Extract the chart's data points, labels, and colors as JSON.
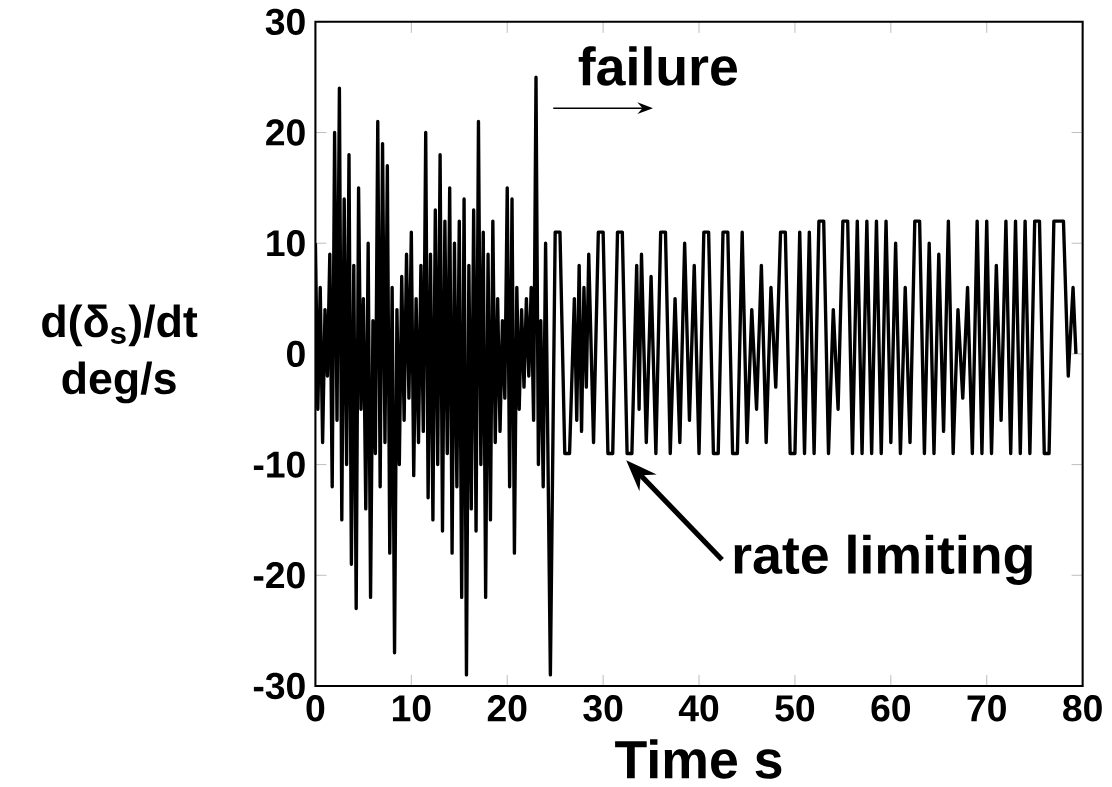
{
  "chart_data": {
    "type": "line",
    "xlabel": "Time s",
    "ylabel": "d(δ$_{s}$)/dt deg/s",
    "xlim": [
      0,
      80
    ],
    "ylim": [
      -30,
      30
    ],
    "xticks": [
      0,
      10,
      20,
      30,
      40,
      50,
      60,
      70,
      80
    ],
    "yticks": [
      -30,
      -20,
      -10,
      0,
      10,
      20,
      30
    ],
    "grid": false,
    "marker": "none",
    "line_style": "solid",
    "color": "#000000",
    "annotations": [
      "failure",
      "rate limiting"
    ],
    "x": [
      0,
      0.25,
      0.5,
      0.75,
      1,
      1.25,
      1.5,
      1.75,
      2,
      2.25,
      2.5,
      2.75,
      3,
      3.25,
      3.5,
      3.75,
      4,
      4.25,
      4.5,
      4.75,
      5,
      5.25,
      5.5,
      5.75,
      6,
      6.25,
      6.5,
      6.75,
      7,
      7.25,
      7.5,
      7.75,
      8,
      8.25,
      8.5,
      8.75,
      9,
      9.25,
      9.5,
      9.75,
      10,
      10.25,
      10.5,
      10.75,
      11,
      11.25,
      11.5,
      11.75,
      12,
      12.25,
      12.5,
      12.75,
      13,
      13.25,
      13.5,
      13.75,
      14,
      14.25,
      14.5,
      14.75,
      15,
      15.25,
      15.5,
      15.75,
      16,
      16.25,
      16.5,
      16.75,
      17,
      17.25,
      17.5,
      17.75,
      18,
      18.25,
      18.5,
      18.75,
      19,
      19.25,
      19.5,
      19.75,
      20,
      20.25,
      20.5,
      20.75,
      21,
      21.25,
      21.5,
      21.75,
      22,
      22.25,
      22.5,
      22.75,
      23,
      23.25,
      23.5,
      23.75,
      24,
      24.5,
      25,
      25.5,
      26,
      26.5,
      27,
      27.25,
      27.5,
      27.75,
      28,
      28.25,
      28.5,
      29,
      29.5,
      30,
      30.5,
      31,
      31.5,
      32,
      32.5,
      33,
      33.5,
      33.75,
      34,
      34.5,
      35,
      35.5,
      36,
      36.5,
      37,
      37.5,
      38,
      38.5,
      39,
      39.5,
      40,
      40.5,
      41,
      41.5,
      42,
      42.5,
      43,
      43.5,
      44,
      44.5,
      45,
      45.5,
      46,
      46.5,
      47,
      47.5,
      48,
      48.5,
      49,
      49.5,
      50,
      50.5,
      51,
      51.5,
      52,
      52.5,
      53,
      53.5,
      54,
      54.5,
      55,
      55.5,
      56,
      56.5,
      57,
      57.5,
      58,
      58.5,
      59,
      59.5,
      60,
      60.5,
      61,
      61.5,
      62,
      62.5,
      63,
      63.5,
      64,
      64.5,
      65,
      65.5,
      66,
      66.5,
      67,
      67.5,
      68,
      68.5,
      69,
      69.5,
      70,
      70.5,
      71,
      71.5,
      72,
      72.5,
      73,
      73.5,
      74,
      74.5,
      75,
      75.5,
      76,
      76.5,
      77,
      78,
      78.5,
      79,
      79.3
    ],
    "values": [
      10,
      -5,
      6,
      -8,
      4,
      -2,
      9,
      -12,
      20,
      -6,
      24,
      -15,
      14,
      -10,
      18,
      -19,
      8,
      -23,
      15,
      -5,
      5,
      -14,
      10,
      -22,
      3,
      -9,
      21,
      -12,
      19,
      -8,
      17,
      -18,
      6,
      -27,
      4,
      -10,
      7,
      -6,
      9,
      -4,
      11,
      -11,
      5,
      -8,
      8,
      -7,
      20,
      -13,
      9,
      -15,
      13,
      -10,
      18,
      -16,
      12,
      -9,
      15,
      -18,
      10,
      -12,
      12,
      -22,
      14,
      -29,
      8,
      -14,
      13,
      -16,
      21,
      -10,
      11,
      -22,
      9,
      -15,
      12,
      -8,
      5,
      -7,
      3,
      -4,
      15,
      -12,
      14,
      -18,
      6,
      -5,
      4,
      -3,
      5,
      -2,
      6,
      -6,
      25,
      -10,
      3,
      -12,
      10,
      -29,
      11,
      11,
      -9,
      -9,
      5,
      -6,
      8,
      -7,
      6,
      -3,
      9,
      -8,
      11,
      11,
      -9,
      -9,
      11,
      11,
      -9,
      -9,
      8,
      -5,
      9,
      -8,
      7,
      -9,
      11,
      11,
      -9,
      5,
      -8,
      10,
      -6,
      8,
      -9,
      11,
      11,
      -9,
      -9,
      11,
      11,
      -9,
      -9,
      11,
      -8,
      4,
      -5,
      8,
      -8,
      6,
      -3,
      11,
      11,
      -9,
      -9,
      11,
      -9,
      11,
      -9,
      12,
      12,
      -9,
      4,
      -5,
      12,
      12,
      -9,
      12,
      -9,
      12,
      -9,
      12,
      -9,
      12,
      -8,
      10,
      -9,
      6,
      -8,
      12,
      12,
      -9,
      10,
      -9,
      9,
      -7,
      12,
      -9,
      4,
      -4,
      6,
      -9,
      12,
      -9,
      12,
      -9,
      8,
      -6,
      12,
      -9,
      12,
      -9,
      12,
      -9,
      12,
      12,
      -9,
      -9,
      12,
      12,
      -2,
      6,
      0
    ]
  }
}
